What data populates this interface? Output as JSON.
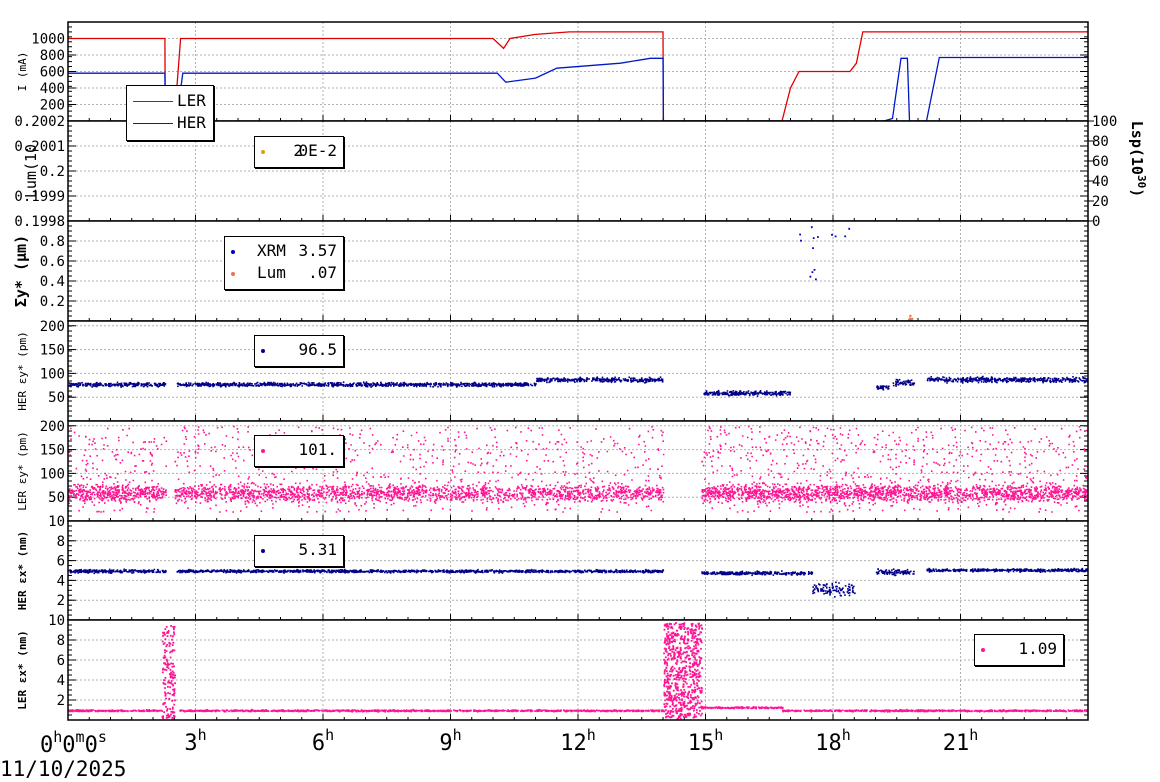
{
  "x_axis": {
    "ticks": [
      "3",
      "6",
      "9",
      "12",
      "15",
      "18",
      "21"
    ],
    "tick_suffix": "h",
    "origin_label": {
      "h": "0",
      "m": "0",
      "s": "0"
    },
    "origin_units": {
      "h": "h",
      "m": "m",
      "s": "s"
    },
    "date": "11/10/2025",
    "range_hours": [
      0,
      24
    ]
  },
  "chart_data": [
    {
      "type": "line",
      "ylabel": "I (mA)",
      "yticks": [
        "1000",
        "800",
        "600",
        "400",
        "200"
      ],
      "ylim": [
        0,
        1200
      ],
      "grid": true,
      "legend_placement": "bottom-left",
      "series": [
        {
          "name": "LER",
          "color": "#e00000",
          "x": [
            0,
            2.28,
            2.29,
            2.5,
            2.65,
            10.0,
            10.25,
            10.4,
            11.0,
            11.8,
            14.0,
            14.01,
            16.3,
            16.8,
            17.0,
            17.2,
            18.4,
            18.55,
            18.7,
            19.0,
            24.0
          ],
          "values": [
            1000,
            1000,
            0,
            0,
            1000,
            1000,
            880,
            1000,
            1050,
            1080,
            1080,
            0,
            0,
            0,
            400,
            600,
            600,
            700,
            1080,
            1080,
            1080
          ]
        },
        {
          "name": "HER",
          "color": "#0018c8",
          "x": [
            0,
            2.28,
            2.29,
            2.55,
            2.7,
            10.1,
            10.3,
            11.0,
            11.5,
            13.0,
            13.7,
            14.0,
            14.01,
            16.5,
            17.0,
            17.5,
            19.2,
            19.4,
            19.6,
            19.75,
            19.8,
            20.2,
            20.5,
            24.0
          ],
          "values": [
            580,
            580,
            0,
            0,
            580,
            580,
            470,
            520,
            640,
            700,
            760,
            760,
            0,
            0,
            0,
            0,
            0,
            30,
            760,
            760,
            0,
            0,
            770,
            770
          ]
        }
      ]
    },
    {
      "type": "scatter",
      "ylabel": "Lum(10",
      "y2label": "Lsp(10",
      "y2label_exponent": "30",
      "y2label_close": ")",
      "yticks": [
        "0.2002",
        "0.2001",
        "0.2",
        "0.1999",
        "0.1998"
      ],
      "y2ticks": [
        "100",
        "80",
        "60",
        "40",
        "20",
        "0"
      ],
      "ylim": [
        0.1998,
        0.2002
      ],
      "y2lim": [
        0,
        100
      ],
      "grid": true,
      "series": [
        {
          "name": "",
          "color": "#e0a000",
          "legend_value": "0E-2",
          "legend_value_overlay": "2",
          "values": []
        }
      ]
    },
    {
      "type": "scatter",
      "ylabel": "Σy* (μm)",
      "yticks": [
        "0.8",
        "0.6",
        "0.4",
        "0.2"
      ],
      "ylim": [
        0,
        1.0
      ],
      "grid": true,
      "series": [
        {
          "name": "XRM",
          "color": "#0000c0",
          "legend_value": "3.57",
          "clusters": [
            {
              "t": [
                17.1,
                17.7
              ],
              "y": [
                0.3,
                0.95
              ],
              "n": 10
            },
            {
              "t": [
                17.9,
                18.4
              ],
              "y": [
                0.8,
                0.95
              ],
              "n": 4
            }
          ]
        },
        {
          "name": "Lum",
          "color": "#f07050",
          "legend_value": ".07",
          "clusters": [
            {
              "t": [
                19.75,
                19.85
              ],
              "y": [
                0.0,
                0.07
              ],
              "n": 12
            }
          ]
        }
      ]
    },
    {
      "type": "scatter",
      "ylabel": "HER εy* (pm)",
      "yticks": [
        "200",
        "150",
        "100",
        "50"
      ],
      "ylim": [
        0,
        210
      ],
      "grid": true,
      "series": [
        {
          "name": "",
          "color": "#00008b",
          "legend_value": "96.5",
          "segments": [
            {
              "t": [
                0,
                2.3
              ],
              "y": 78,
              "spread": 6
            },
            {
              "t": [
                2.55,
                11.0
              ],
              "y": 78,
              "spread": 6
            },
            {
              "t": [
                11.0,
                14.0
              ],
              "y": 88,
              "spread": 7
            },
            {
              "t": [
                14.95,
                17.0
              ],
              "y": 60,
              "spread": 7
            },
            {
              "t": [
                19.0,
                19.3
              ],
              "y": 72,
              "spread": 6
            },
            {
              "t": [
                19.4,
                19.9
              ],
              "y": 82,
              "spread": 10
            },
            {
              "t": [
                20.2,
                24.0
              ],
              "y": 88,
              "spread": 8
            }
          ]
        }
      ]
    },
    {
      "type": "scatter",
      "ylabel": "LER εy* (pm)",
      "yticks": [
        "200",
        "150",
        "100",
        "50"
      ],
      "ylim": [
        0,
        210
      ],
      "grid": true,
      "series": [
        {
          "name": "",
          "color": "#ff1493",
          "legend_value": "101.",
          "segments": [
            {
              "t": [
                0,
                2.3
              ],
              "y": 60,
              "spread": 25
            },
            {
              "t": [
                2.5,
                14.0
              ],
              "y": 60,
              "spread": 25
            },
            {
              "t": [
                14.9,
                24.0
              ],
              "y": 60,
              "spread": 25
            }
          ]
        }
      ]
    },
    {
      "type": "scatter",
      "ylabel": "HER εx* (nm)",
      "yticks": [
        "10",
        "8",
        "6",
        "4",
        "2"
      ],
      "ylim": [
        0,
        10
      ],
      "grid": true,
      "series": [
        {
          "name": "",
          "color": "#00008b",
          "legend_value": "5.31",
          "segments": [
            {
              "t": [
                0,
                2.3
              ],
              "y": 5.0,
              "spread": 0.25
            },
            {
              "t": [
                2.55,
                14.0
              ],
              "y": 5.0,
              "spread": 0.2
            },
            {
              "t": [
                14.9,
                17.5
              ],
              "y": 4.8,
              "spread": 0.25
            },
            {
              "t": [
                17.5,
                18.5
              ],
              "y": 3.2,
              "spread": 0.9
            },
            {
              "t": [
                19.0,
                19.9
              ],
              "y": 4.9,
              "spread": 0.4
            },
            {
              "t": [
                20.2,
                24.0
              ],
              "y": 5.1,
              "spread": 0.2
            }
          ]
        }
      ]
    },
    {
      "type": "scatter",
      "ylabel": "LER εx* (nm)",
      "yticks": [
        "10",
        "8",
        "6",
        "4",
        "2"
      ],
      "ylim": [
        0,
        10
      ],
      "grid": true,
      "series": [
        {
          "name": "",
          "color": "#ff1493",
          "legend_value": "1.09",
          "segments": [
            {
              "t": [
                0,
                2.2
              ],
              "y": 1.0,
              "spread": 0.12
            },
            {
              "t": [
                2.6,
                14.0
              ],
              "y": 1.0,
              "spread": 0.12
            },
            {
              "t": [
                14.9,
                16.8
              ],
              "y": 1.3,
              "spread": 0.12
            },
            {
              "t": [
                16.8,
                24.0
              ],
              "y": 1.0,
              "spread": 0.12
            }
          ],
          "clusters": [
            {
              "t": [
                2.2,
                2.5
              ],
              "y": [
                0.2,
                9.5
              ],
              "n": 160
            },
            {
              "t": [
                14.0,
                14.9
              ],
              "y": [
                0.2,
                9.8
              ],
              "n": 700
            }
          ]
        }
      ]
    }
  ]
}
